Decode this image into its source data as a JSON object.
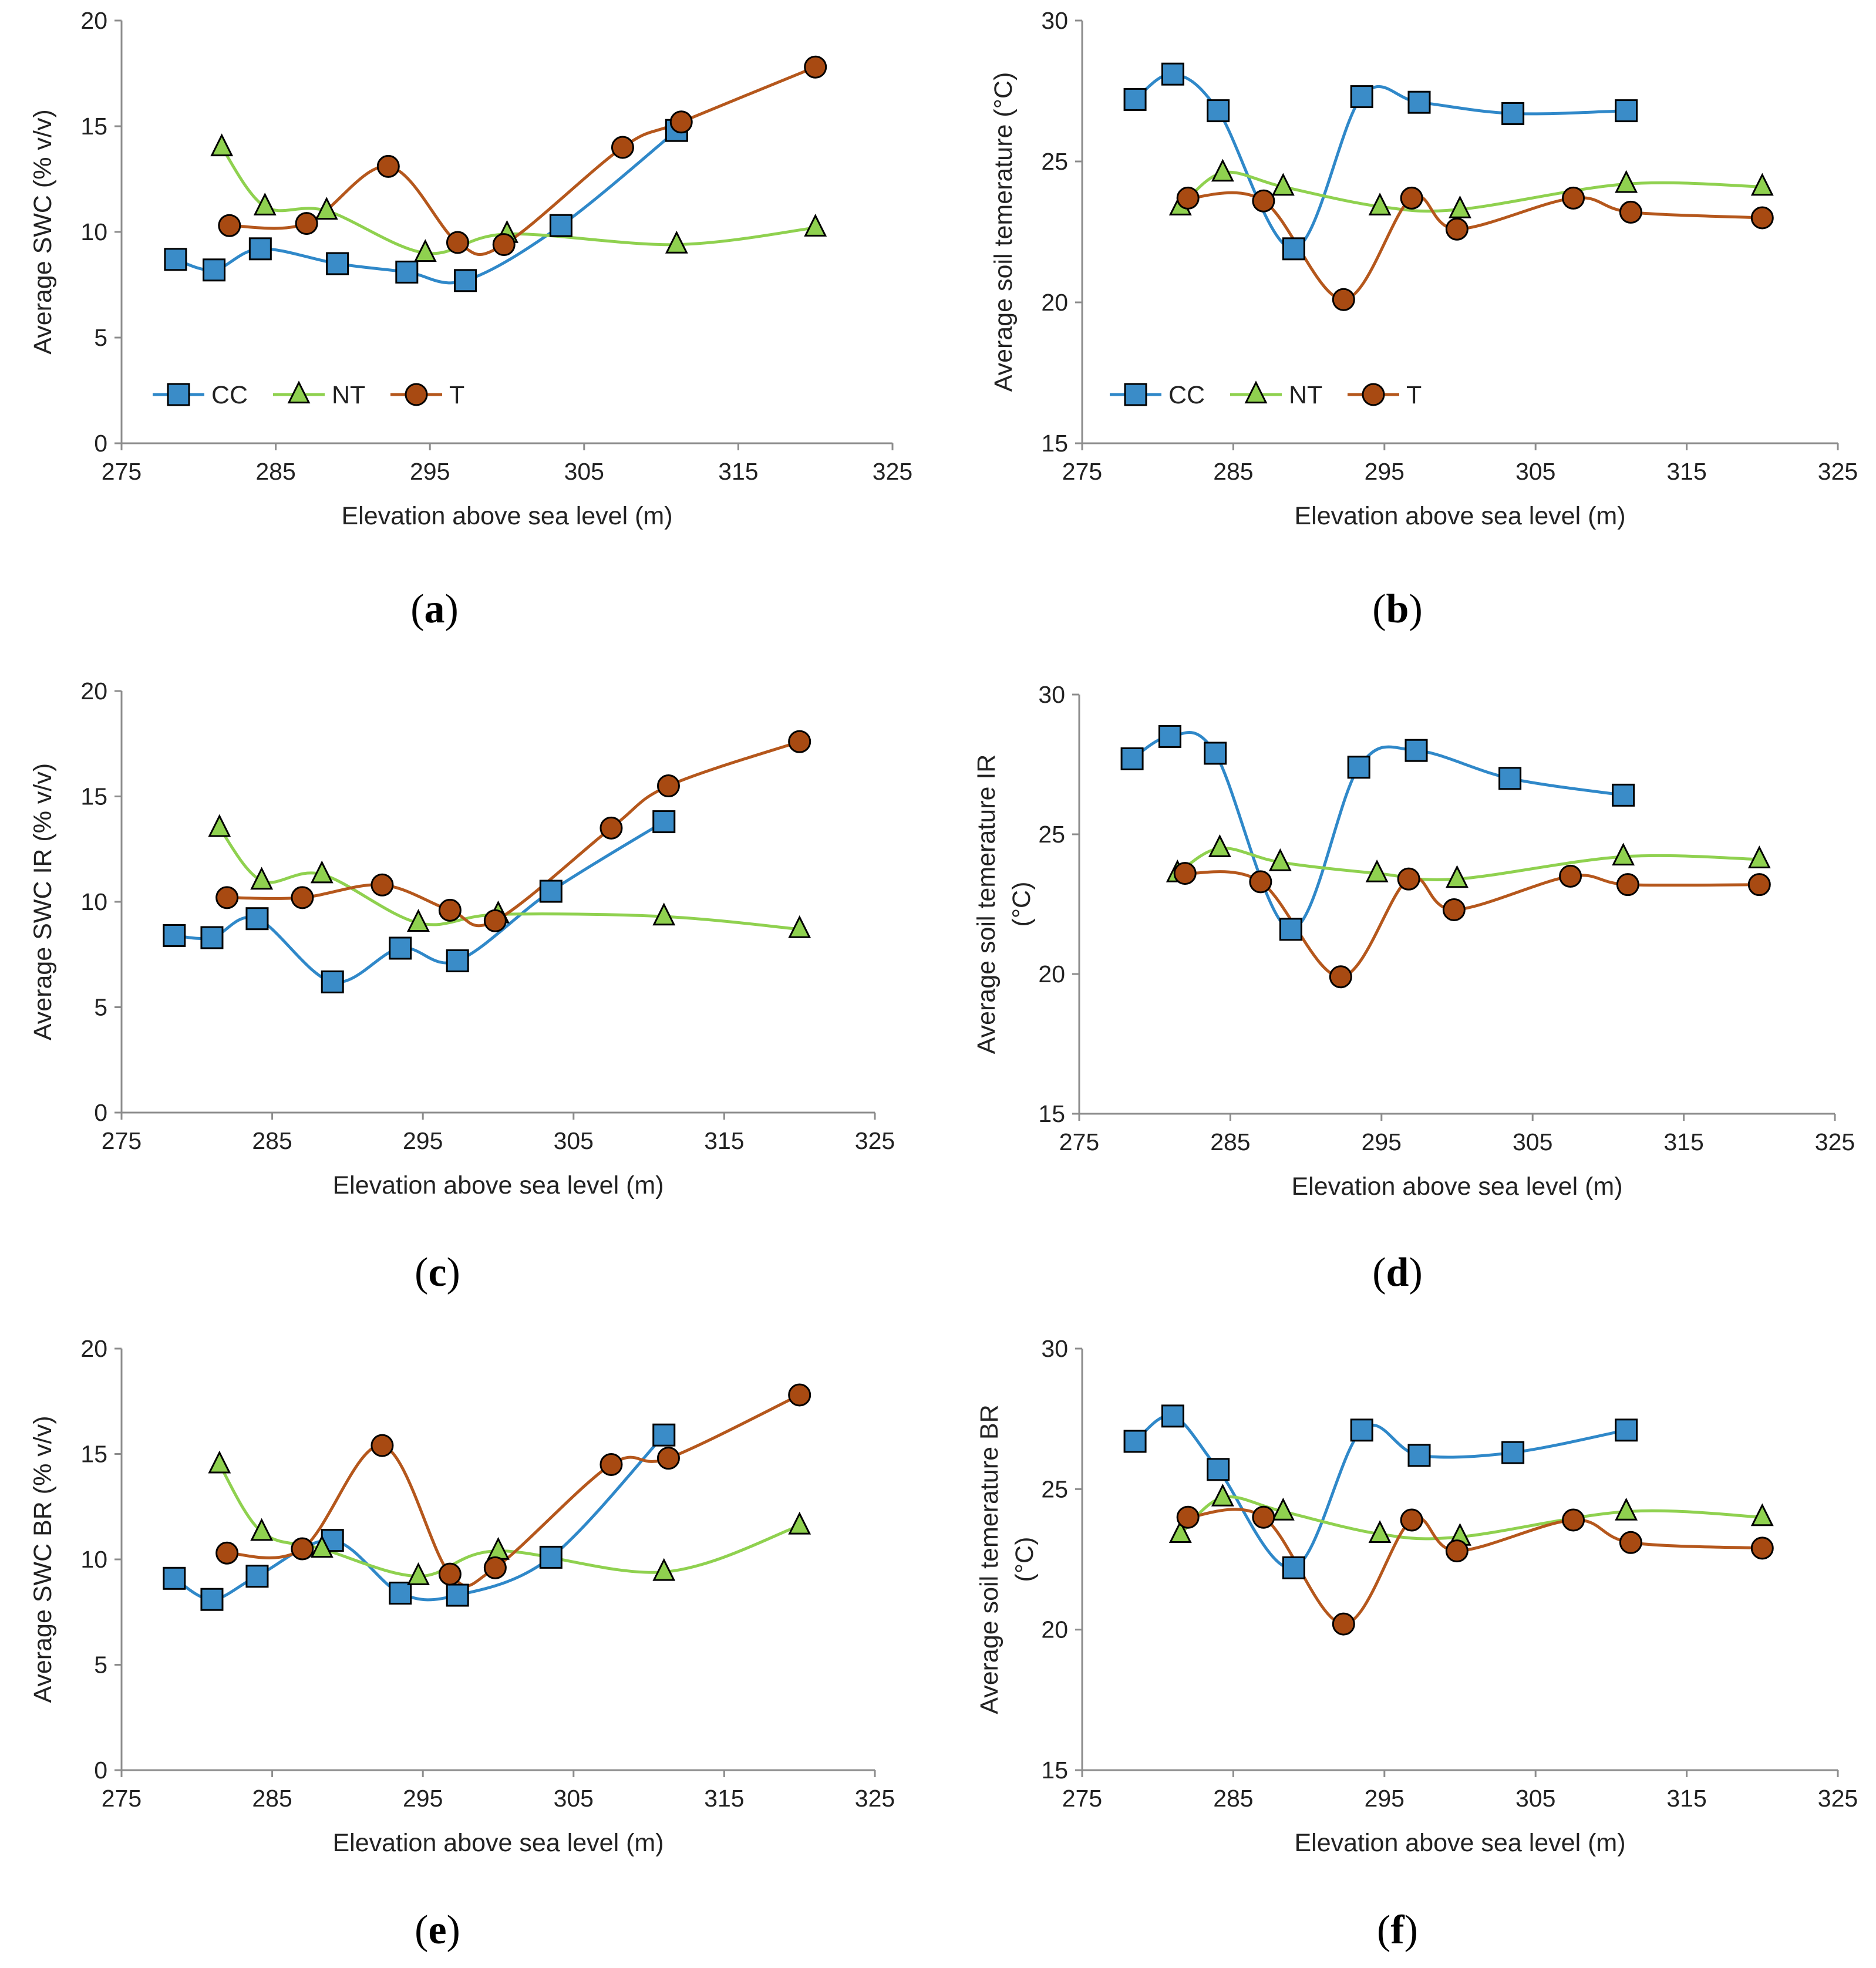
{
  "colors": {
    "CC": "#3a8cc8",
    "NT": "#8fd14f",
    "T": "#a84a12",
    "CC_line": "#2f88c9",
    "NT_line": "#8fd14f",
    "T_line": "#b5571c"
  },
  "chart_data": [
    {
      "panel": "a",
      "type": "line",
      "title": "",
      "xlabel": "Elevation  above sea level (m)",
      "ylabel": "Average SWC (% v/v)",
      "xlim": [
        275,
        325
      ],
      "ylim": [
        0,
        20
      ],
      "xticks": [
        275,
        285,
        295,
        305,
        315,
        325
      ],
      "yticks": [
        0,
        5,
        10,
        15,
        20
      ],
      "legend": true,
      "legend_position": "bottom-left",
      "series": [
        {
          "name": "CC",
          "marker": "square",
          "x": [
            278.5,
            281,
            284,
            289,
            293.5,
            297.3,
            303.5,
            311
          ],
          "y": [
            8.7,
            8.2,
            9.2,
            8.5,
            8.1,
            7.7,
            10.3,
            14.8
          ]
        },
        {
          "name": "NT",
          "marker": "triangle",
          "x": [
            281.5,
            284.3,
            288.3,
            294.7,
            300,
            311,
            320
          ],
          "y": [
            14.0,
            11.2,
            11.0,
            9.0,
            9.9,
            9.4,
            10.2
          ]
        },
        {
          "name": "T",
          "marker": "circle",
          "x": [
            282,
            287,
            292.3,
            296.8,
            299.8,
            307.5,
            311.3,
            320
          ],
          "y": [
            10.3,
            10.4,
            13.1,
            9.5,
            9.4,
            14.0,
            15.2,
            17.8
          ]
        }
      ]
    },
    {
      "panel": "b",
      "type": "line",
      "title": "",
      "xlabel": "Elevation  above sea level (m)",
      "ylabel": "Average soil temerature (°C)",
      "xlim": [
        275,
        325
      ],
      "ylim": [
        15,
        30
      ],
      "xticks": [
        275,
        285,
        295,
        305,
        315,
        325
      ],
      "yticks": [
        15,
        20,
        25,
        30
      ],
      "legend": true,
      "legend_position": "bottom-left",
      "series": [
        {
          "name": "CC",
          "marker": "square",
          "x": [
            278.5,
            281,
            284,
            289,
            293.5,
            297.3,
            303.5,
            311
          ],
          "y": [
            27.2,
            28.1,
            26.8,
            21.9,
            27.3,
            27.1,
            26.7,
            26.8
          ]
        },
        {
          "name": "NT",
          "marker": "triangle",
          "x": [
            281.5,
            284.3,
            288.3,
            294.7,
            300,
            311,
            320
          ],
          "y": [
            23.4,
            24.6,
            24.1,
            23.4,
            23.3,
            24.2,
            24.1
          ]
        },
        {
          "name": "T",
          "marker": "circle",
          "x": [
            282,
            287,
            292.3,
            296.8,
            299.8,
            307.5,
            311.3,
            320
          ],
          "y": [
            23.7,
            23.6,
            20.1,
            23.7,
            22.6,
            23.7,
            23.2,
            23.0
          ]
        }
      ]
    },
    {
      "panel": "c",
      "type": "line",
      "title": "",
      "xlabel": "Elevation  above sea level (m)",
      "ylabel": "Average SWC IR (% v/v)",
      "xlim": [
        275,
        325
      ],
      "ylim": [
        0,
        20
      ],
      "xticks": [
        275,
        285,
        295,
        305,
        315,
        325
      ],
      "yticks": [
        0,
        5,
        10,
        15,
        20
      ],
      "legend": false,
      "series": [
        {
          "name": "CC",
          "marker": "square",
          "x": [
            278.5,
            281,
            284,
            289,
            293.5,
            297.3,
            303.5,
            311
          ],
          "y": [
            8.4,
            8.3,
            9.2,
            6.2,
            7.8,
            7.2,
            10.5,
            13.8
          ]
        },
        {
          "name": "NT",
          "marker": "triangle",
          "x": [
            281.5,
            284.3,
            288.3,
            294.7,
            300,
            311,
            320
          ],
          "y": [
            13.5,
            11.0,
            11.3,
            9.0,
            9.4,
            9.3,
            8.7
          ]
        },
        {
          "name": "T",
          "marker": "circle",
          "x": [
            282,
            287,
            292.3,
            296.8,
            299.8,
            307.5,
            311.3,
            320
          ],
          "y": [
            10.2,
            10.2,
            10.8,
            9.6,
            9.1,
            13.5,
            15.5,
            17.6
          ]
        }
      ]
    },
    {
      "panel": "d",
      "type": "line",
      "title": "",
      "xlabel": "Elevation  above sea level (m)",
      "ylabel": "Average soil temerature IR",
      "ylabel2": "(°C)",
      "xlim": [
        275,
        325
      ],
      "ylim": [
        15,
        30
      ],
      "xticks": [
        275,
        285,
        295,
        305,
        315,
        325
      ],
      "yticks": [
        15,
        20,
        25,
        30
      ],
      "legend": false,
      "series": [
        {
          "name": "CC",
          "marker": "square",
          "x": [
            278.5,
            281,
            284,
            289,
            293.5,
            297.3,
            303.5,
            311
          ],
          "y": [
            27.7,
            28.5,
            27.9,
            21.6,
            27.4,
            28.0,
            27.0,
            26.4
          ]
        },
        {
          "name": "NT",
          "marker": "triangle",
          "x": [
            281.5,
            284.3,
            288.3,
            294.7,
            300,
            311,
            320
          ],
          "y": [
            23.6,
            24.5,
            24.0,
            23.6,
            23.4,
            24.2,
            24.1
          ]
        },
        {
          "name": "T",
          "marker": "circle",
          "x": [
            282,
            287,
            292.3,
            296.8,
            299.8,
            307.5,
            311.3,
            320
          ],
          "y": [
            23.6,
            23.3,
            19.9,
            23.4,
            22.3,
            23.5,
            23.2,
            23.2
          ]
        }
      ]
    },
    {
      "panel": "e",
      "type": "line",
      "title": "",
      "xlabel": "Elevation  above sea level (m)",
      "ylabel": "Average SWC BR (% v/v)",
      "xlim": [
        275,
        325
      ],
      "ylim": [
        0,
        20
      ],
      "xticks": [
        275,
        285,
        295,
        305,
        315,
        325
      ],
      "yticks": [
        0,
        5,
        10,
        15,
        20
      ],
      "legend": false,
      "series": [
        {
          "name": "CC",
          "marker": "square",
          "x": [
            278.5,
            281,
            284,
            289,
            293.5,
            297.3,
            303.5,
            311
          ],
          "y": [
            9.1,
            8.1,
            9.2,
            10.9,
            8.4,
            8.3,
            10.1,
            15.9
          ]
        },
        {
          "name": "NT",
          "marker": "triangle",
          "x": [
            281.5,
            284.3,
            288.3,
            294.7,
            300,
            311,
            320
          ],
          "y": [
            14.5,
            11.3,
            10.5,
            9.2,
            10.4,
            9.4,
            11.6
          ]
        },
        {
          "name": "T",
          "marker": "circle",
          "x": [
            282,
            287,
            292.3,
            296.8,
            299.8,
            307.5,
            311.3,
            320
          ],
          "y": [
            10.3,
            10.5,
            15.4,
            9.3,
            9.6,
            14.5,
            14.8,
            17.8
          ]
        }
      ]
    },
    {
      "panel": "f",
      "type": "line",
      "title": "",
      "xlabel": "Elevation  above sea level (m)",
      "ylabel": "Average soil temerature BR",
      "ylabel2": "(°C)",
      "xlim": [
        275,
        325
      ],
      "ylim": [
        15,
        30
      ],
      "xticks": [
        275,
        285,
        295,
        305,
        315,
        325
      ],
      "yticks": [
        15,
        20,
        25,
        30
      ],
      "legend": false,
      "series": [
        {
          "name": "CC",
          "marker": "square",
          "x": [
            278.5,
            281,
            284,
            289,
            293.5,
            297.3,
            303.5,
            311
          ],
          "y": [
            26.7,
            27.6,
            25.7,
            22.2,
            27.1,
            26.2,
            26.3,
            27.1
          ]
        },
        {
          "name": "NT",
          "marker": "triangle",
          "x": [
            281.5,
            284.3,
            288.3,
            294.7,
            300,
            311,
            320
          ],
          "y": [
            23.4,
            24.7,
            24.2,
            23.4,
            23.3,
            24.2,
            24.0
          ]
        },
        {
          "name": "T",
          "marker": "circle",
          "x": [
            282,
            287,
            292.3,
            296.8,
            299.8,
            307.5,
            311.3,
            320
          ],
          "y": [
            24.0,
            24.0,
            20.2,
            23.9,
            22.8,
            23.9,
            23.1,
            22.9
          ]
        }
      ]
    }
  ]
}
